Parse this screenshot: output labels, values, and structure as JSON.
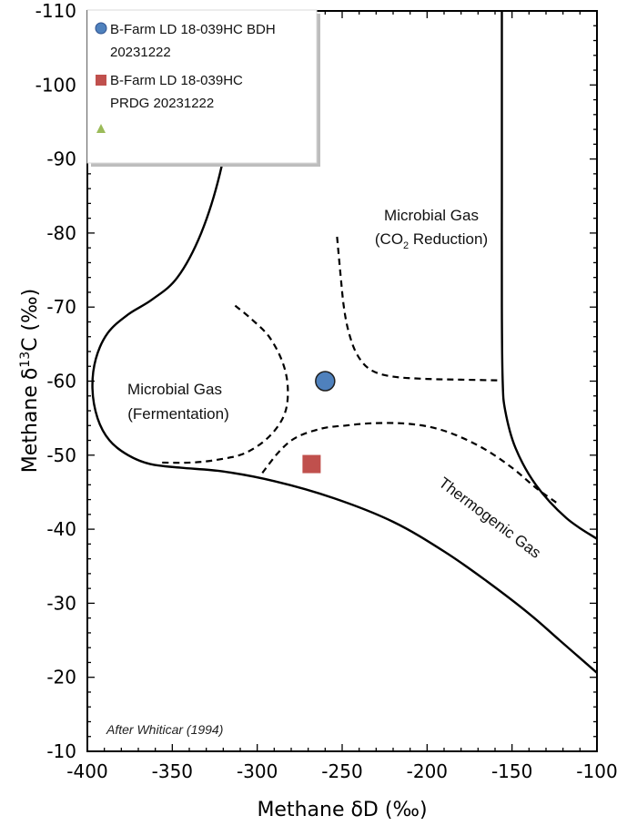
{
  "chart_data": {
    "type": "scatter",
    "xlabel": "Methane δD (‰)",
    "ylabel": "Methane δ¹³C (‰)",
    "ylabel_parts": {
      "pre": "Methane",
      "delta": "δ",
      "sup": "13",
      "post": "C (‰)"
    },
    "xlim": [
      -400,
      -100
    ],
    "ylim": [
      -110,
      -10
    ],
    "y_reversed": true,
    "x_ticks": [
      -400,
      -350,
      -300,
      -250,
      -200,
      -150,
      -100
    ],
    "y_ticks": [
      -110,
      -100,
      -90,
      -80,
      -70,
      -60,
      -50,
      -40,
      -30,
      -20,
      -10
    ],
    "grid": false,
    "legend_position": "top-left",
    "series": [
      {
        "name": "B-Farm LD 18-039HC BDH 20231222",
        "legend_lines": [
          "B-Farm LD 18-039HC BDH",
          "20231222"
        ],
        "marker": "circle",
        "color": "#4f81bd",
        "points": [
          [
            -260,
            -60
          ]
        ]
      },
      {
        "name": "B-Farm LD 18-039HC PRDG 20231222",
        "legend_lines": [
          "B-Farm LD 18-039HC",
          "PRDG 20231222"
        ],
        "marker": "square",
        "color": "#c0504d",
        "points": [
          [
            -268,
            -48.8
          ]
        ]
      },
      {
        "name": "",
        "legend_lines": [],
        "marker": "triangle",
        "color": "#9bbb59",
        "points": []
      }
    ],
    "regions": {
      "fermentation": [
        "Microbial Gas",
        "(Fermentation)"
      ],
      "co2_reduction": {
        "line1": "Microbial Gas",
        "pre": "(CO",
        "sub": "2",
        "post": " Reduction)"
      },
      "thermogenic": "Thermogenic Gas"
    },
    "annotation": "After Whiticar (1994)",
    "boundaries": {
      "outer": [
        [
          -310,
          -110
        ],
        [
          -312,
          -105
        ],
        [
          -315,
          -97
        ],
        [
          -322,
          -88
        ],
        [
          -333,
          -80
        ],
        [
          -347,
          -74
        ],
        [
          -362,
          -71
        ],
        [
          -376,
          -69
        ],
        [
          -388,
          -66.5
        ],
        [
          -395,
          -63
        ],
        [
          -397,
          -59
        ],
        [
          -394,
          -55
        ],
        [
          -387,
          -52
        ],
        [
          -376,
          -50
        ],
        [
          -363,
          -48.8
        ],
        [
          -345,
          -48.3
        ],
        [
          -320,
          -47.8
        ],
        [
          -290,
          -46.5
        ],
        [
          -255,
          -44.2
        ],
        [
          -220,
          -41
        ],
        [
          -190,
          -37
        ],
        [
          -165,
          -33
        ],
        [
          -140,
          -28.6
        ],
        [
          -122,
          -25
        ],
        [
          -100,
          -20.6
        ]
      ],
      "right": [
        [
          -100,
          -38.7
        ],
        [
          -118,
          -41.5
        ],
        [
          -136,
          -46
        ],
        [
          -148,
          -51
        ],
        [
          -154,
          -56
        ],
        [
          -155.5,
          -60
        ],
        [
          -156,
          -70
        ],
        [
          -156,
          -85
        ],
        [
          -156,
          -100
        ],
        [
          -156,
          -110
        ]
      ],
      "fermentation_dashed": [
        [
          -313,
          -70.2
        ],
        [
          -304,
          -68.5
        ],
        [
          -293,
          -66
        ],
        [
          -285,
          -62.5
        ],
        [
          -282,
          -59
        ],
        [
          -284,
          -55.5
        ],
        [
          -293,
          -52.5
        ],
        [
          -307,
          -50.3
        ],
        [
          -323,
          -49.4
        ],
        [
          -339,
          -49
        ],
        [
          -358,
          -49
        ]
      ],
      "co2_dashed": [
        [
          -253,
          -79.5
        ],
        [
          -251,
          -74.5
        ],
        [
          -249,
          -70
        ],
        [
          -246,
          -66.5
        ],
        [
          -241,
          -63.5
        ],
        [
          -233,
          -61.5
        ],
        [
          -220,
          -60.6
        ],
        [
          -200,
          -60.3
        ],
        [
          -180,
          -60.2
        ],
        [
          -157,
          -60.1
        ]
      ],
      "thermo_dashed": [
        [
          -297,
          -47.6
        ],
        [
          -287,
          -50.5
        ],
        [
          -277,
          -52.4
        ],
        [
          -262,
          -53.6
        ],
        [
          -248,
          -54
        ],
        [
          -233,
          -54.3
        ],
        [
          -215,
          -54.3
        ],
        [
          -198,
          -53.8
        ],
        [
          -183,
          -52.7
        ],
        [
          -166,
          -50.8
        ],
        [
          -150,
          -48.3
        ],
        [
          -136,
          -45.6
        ],
        [
          -124,
          -43.6
        ]
      ]
    }
  }
}
